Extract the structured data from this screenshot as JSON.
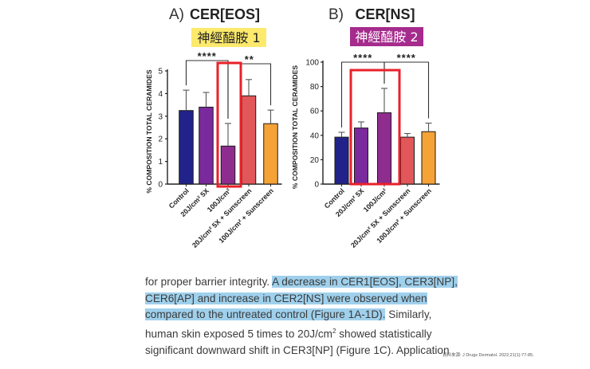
{
  "colors": {
    "control": "#22238a",
    "twentyx": "#7b2a9e",
    "hundred": "#8f2d8f",
    "twenty_sun": "#e2575a",
    "hundred_sun": "#f5a236",
    "highlight_box": "#e8212a",
    "label_bg_1": "#fde96c",
    "label_bg_2": "#a52b8d",
    "text_highlight": "#9fd0ec"
  },
  "chart_data": [
    {
      "type": "bar",
      "panel": "A)",
      "title": "CER[EOS]",
      "annotation": "神經醯胺 1",
      "ylabel": "% COMPOSITION TOTAL CERAMIDES",
      "ylim": [
        0,
        5
      ],
      "yticks": [
        "0",
        "1",
        "2",
        "3",
        "4",
        "5"
      ],
      "categories": [
        "Control",
        "20J/cm² 5X",
        "100J/cm²",
        "20J/cm² 5X + Sunscreen",
        "100J/cm² + Sunscreen"
      ],
      "values": [
        3.25,
        3.4,
        1.68,
        3.9,
        2.67
      ],
      "errors": [
        0.9,
        0.65,
        1.0,
        0.72,
        0.6
      ],
      "significance": [
        {
          "from": 0,
          "to": 2,
          "label": "****"
        },
        {
          "from": 2,
          "to": 4,
          "label": "**"
        }
      ],
      "highlighted_category": 2,
      "grid": false
    },
    {
      "type": "bar",
      "panel": "B)",
      "title": "CER[NS]",
      "annotation": "神經醯胺 2",
      "ylabel": "% COMPOSITION TOTAL CERAMIDES",
      "ylim": [
        0,
        100
      ],
      "yticks": [
        "0",
        "20",
        "40",
        "60",
        "80",
        "100"
      ],
      "categories": [
        "Control",
        "20J/cm² 5X",
        "100J/cm²",
        "20J/cm² 5X + Sunscreen",
        "100J/cm² + Sunscreen"
      ],
      "values": [
        38.5,
        46,
        58.5,
        38.5,
        43
      ],
      "errors": [
        4,
        5,
        20,
        3,
        7
      ],
      "significance": [
        {
          "from": 0,
          "to": 2,
          "label": "****"
        },
        {
          "from": 2,
          "to": 4,
          "label": "****"
        }
      ],
      "highlighted_category": 1,
      "grid": false
    }
  ],
  "text": {
    "p1": "for proper barrier integrity. ",
    "hl1": "A decrease in CER1[EOS], CER3[NP],",
    "hl2": "CER6[AP] and increase in CER2[NS] were observed when",
    "hl3": "compared to the untreated control (Figure 1A-1D).",
    "p2": " Similarly,",
    "p3": "human skin exposed 5 times to 20J/cm",
    "p3_sup": "2",
    "p3_tail": " showed statistically",
    "p4": "significant downward shift in CER3[NP] (Figure 1C). Application"
  },
  "source": "資料來源: J Drugs Dermatol. 2022;21(1):77-85."
}
